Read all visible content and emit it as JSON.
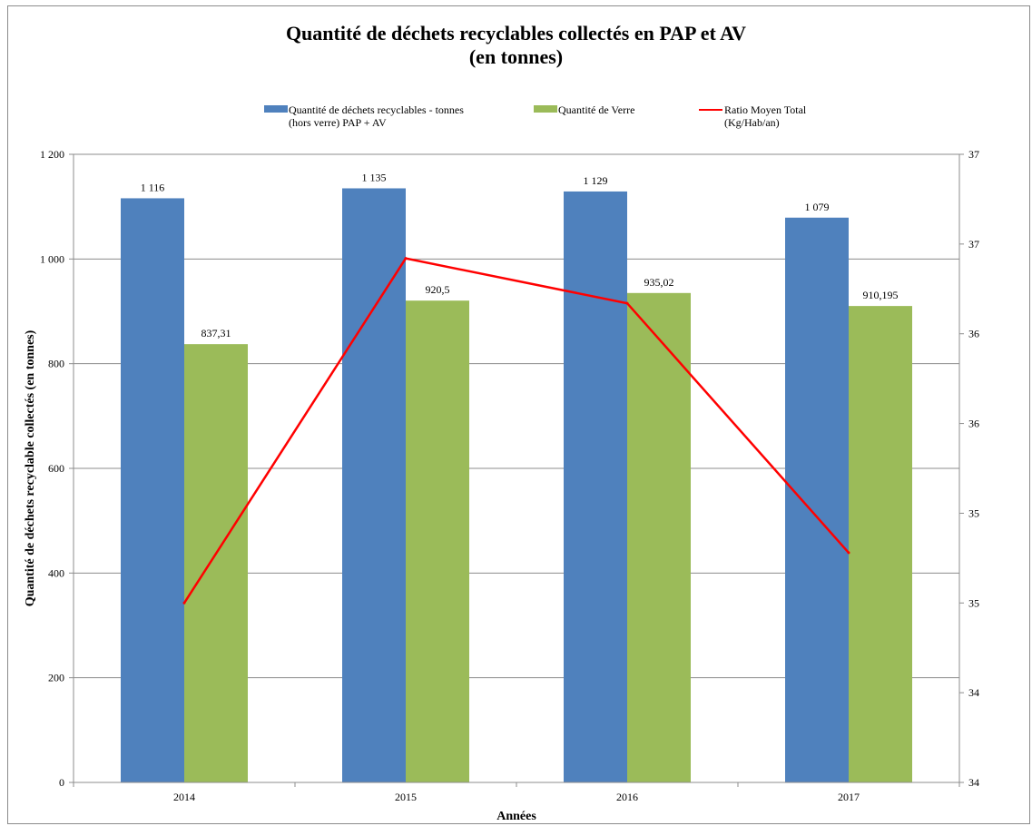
{
  "chart_data": {
    "type": "bar",
    "title": "Quantité de déchets recyclables collectés en PAP et AV",
    "subtitle": "(en tonnes)",
    "xlabel": "Années",
    "ylabel": "Quantité de déchets recyclable  collectés (en tonnes)",
    "categories": [
      "2014",
      "2015",
      "2016",
      "2017"
    ],
    "ylim": [
      0,
      1200
    ],
    "y_ticks": [
      "0",
      "200",
      "400",
      "600",
      "800",
      "1 000",
      "1 200"
    ],
    "y2lim": [
      34,
      37.5
    ],
    "y2_ticks": [
      "34",
      "34",
      "35",
      "35",
      "36",
      "36",
      "37",
      "37"
    ],
    "grid": true,
    "legend_position": "top",
    "series": [
      {
        "name": "Quantité de déchets recyclables - tonnes\n(hors verre) PAP + AV",
        "kind": "bar",
        "color": "#4f81bd",
        "values": [
          1116,
          1135,
          1129,
          1079
        ],
        "labels": [
          "1 116",
          "1 135",
          "1 129",
          "1 079"
        ]
      },
      {
        "name": "Quantité de Verre",
        "kind": "bar",
        "color": "#9bbb59",
        "values": [
          837.31,
          920.5,
          935.02,
          910.195
        ],
        "labels": [
          "837,31",
          "920,5",
          "935,02",
          "910,195"
        ]
      },
      {
        "name": "Ratio Moyen Total\n(Kg/Hab/an)",
        "kind": "line",
        "axis": "right",
        "color": "#ff0000",
        "values": [
          35.0,
          36.92,
          36.67,
          35.28
        ]
      }
    ]
  }
}
